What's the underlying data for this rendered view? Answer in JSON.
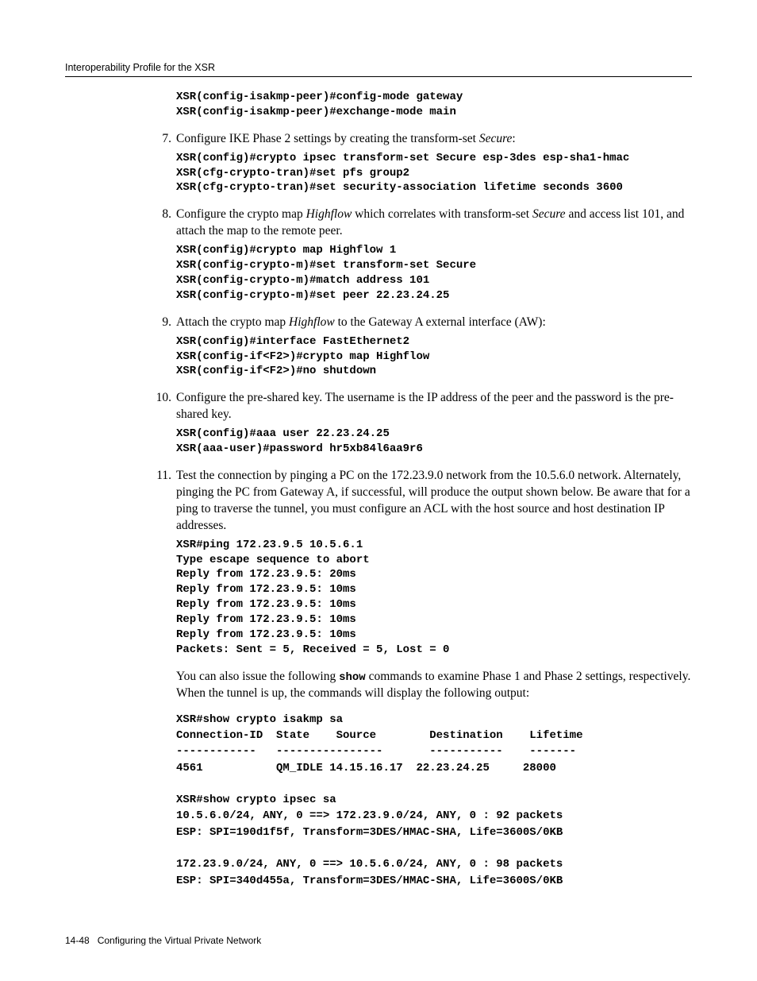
{
  "header": {
    "running": "Interoperability Profile for the XSR"
  },
  "steps": [
    {
      "num": "",
      "intro_html": "",
      "code": "XSR(config-isakmp-peer)#config-mode gateway\nXSR(config-isakmp-peer)#exchange-mode main"
    },
    {
      "num": "7.",
      "intro_html": "Configure IKE Phase 2 settings by creating the transform-set <span class=\"ital\">Secure</span>:",
      "code": "XSR(config)#crypto ipsec transform-set Secure esp-3des esp-sha1-hmac\nXSR(cfg-crypto-tran)#set pfs group2\nXSR(cfg-crypto-tran)#set security-association lifetime seconds 3600"
    },
    {
      "num": "8.",
      "intro_html": "Configure the crypto map <span class=\"ital\">Highflow</span> which correlates with transform-set <span class=\"ital\">Secure</span> and access list 101, and attach the map to the remote peer.",
      "code": "XSR(config)#crypto map Highflow 1\nXSR(config-crypto-m)#set transform-set Secure\nXSR(config-crypto-m)#match address 101\nXSR(config-crypto-m)#set peer 22.23.24.25"
    },
    {
      "num": "9.",
      "intro_html": "Attach the crypto map <span class=\"ital\">Highflow</span> to the Gateway A external interface (AW):",
      "code": "XSR(config)#interface FastEthernet2\nXSR(config-if<F2>)#crypto map Highflow\nXSR(config-if<F2>)#no shutdown"
    },
    {
      "num": "10.",
      "intro_html": "Configure the pre-shared key. The username is the IP address of the peer and the password is the pre-shared key.",
      "code": "XSR(config)#aaa user 22.23.24.25\nXSR(aaa-user)#password hr5xb84l6aa9r6"
    },
    {
      "num": "11.",
      "intro_html": "Test the connection by pinging a PC on the 172.23.9.0 network from the 10.5.6.0 network. Alternately, pinging the PC from Gateway A, if successful, will produce the output shown below. Be aware that for a ping to traverse the tunnel, you must configure an ACL with the host source and host destination IP addresses.",
      "code": "XSR#ping 172.23.9.5 10.5.6.1\nType escape sequence to abort\nReply from 172.23.9.5: 20ms\nReply from 172.23.9.5: 10ms\nReply from 172.23.9.5: 10ms\nReply from 172.23.9.5: 10ms\nReply from 172.23.9.5: 10ms\nPackets: Sent = 5, Received = 5, Lost = 0"
    }
  ],
  "after_step11_para_pre": "You can also issue the following ",
  "after_step11_show": "show",
  "after_step11_para_post": " commands to examine Phase 1 and Phase 2 settings, respectively. When the tunnel is up, the commands will display the following output:",
  "tail_code": "XSR#show crypto isakmp sa\nConnection-ID  State    Source        Destination    Lifetime\n------------   ----------------       -----------    -------\n4561           QM_IDLE 14.15.16.17  22.23.24.25     28000\n\nXSR#show crypto ipsec sa\n10.5.6.0/24, ANY, 0 ==> 172.23.9.0/24, ANY, 0 : 92 packets\nESP: SPI=190d1f5f, Transform=3DES/HMAC-SHA, Life=3600S/0KB\n\n172.23.9.0/24, ANY, 0 ==> 10.5.6.0/24, ANY, 0 : 98 packets\nESP: SPI=340d455a, Transform=3DES/HMAC-SHA, Life=3600S/0KB",
  "footer": {
    "page": "14-48",
    "title": "Configuring the Virtual Private Network"
  }
}
